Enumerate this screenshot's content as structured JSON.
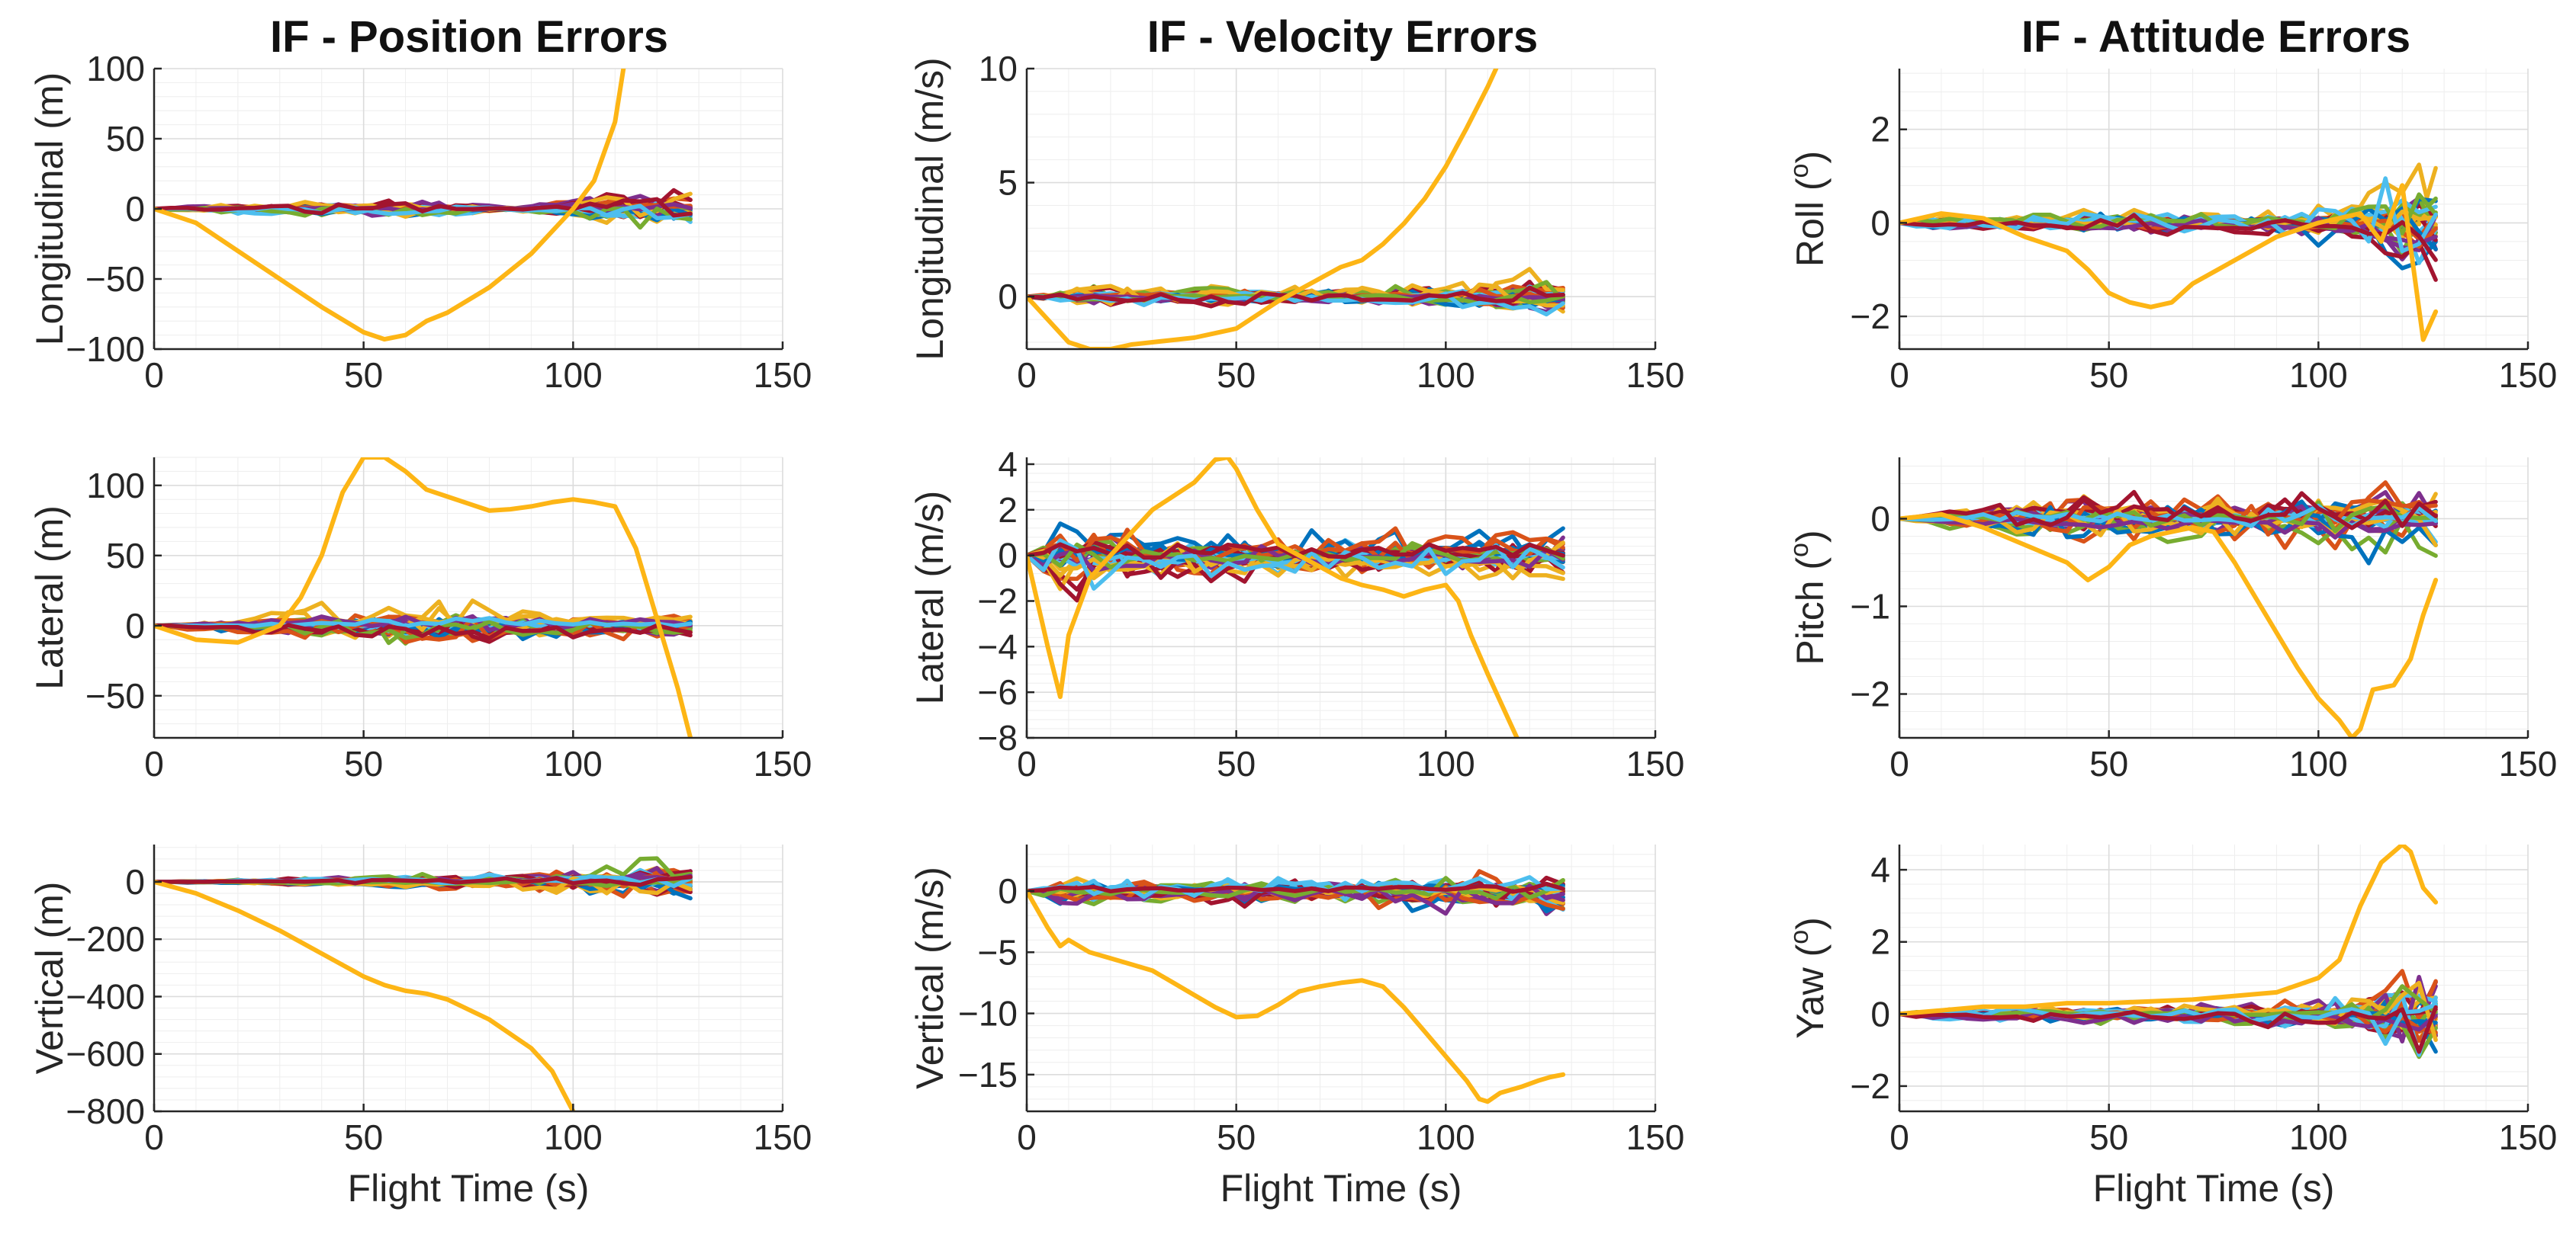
{
  "figure": {
    "column_titles": [
      "IF - Position Errors",
      "IF - Velocity Errors",
      "IF - Attitude Errors"
    ],
    "xlabel": "Flight Time (s)"
  },
  "chart_data": [
    {
      "type": "line",
      "id": "pos-long",
      "title": "IF - Position Errors",
      "xlabel": "",
      "ylabel": "Longitudinal (m)",
      "xlim": [
        0,
        150
      ],
      "ylim": [
        -100,
        100
      ],
      "xticks": [
        0,
        50,
        100,
        150
      ],
      "yticks": [
        -100,
        -50,
        0,
        50,
        100
      ],
      "xtick_labels": [
        "0",
        "50",
        "100",
        "150"
      ],
      "ytick_labels": [
        "−100",
        "−50",
        "0",
        "50",
        "100"
      ],
      "grid": true,
      "ensemble": {
        "description": "many Monte Carlo runs clustered around zero",
        "envelope": [
          0,
          3,
          5,
          7,
          9,
          10,
          11,
          12,
          10,
          6,
          2,
          8,
          14,
          18,
          20,
          18
        ],
        "t_end": 128
      },
      "outlier": {
        "x": [
          0,
          10,
          20,
          30,
          40,
          50,
          55,
          60,
          65,
          70,
          80,
          90,
          100,
          105,
          110,
          112
        ],
        "y": [
          0,
          -10,
          -30,
          -50,
          -70,
          -88,
          -93,
          -90,
          -80,
          -74,
          -56,
          -32,
          0,
          20,
          62,
          100
        ]
      }
    },
    {
      "type": "line",
      "id": "vel-long",
      "title": "IF - Velocity Errors",
      "xlabel": "",
      "ylabel": "Longitudinal (m/s)",
      "xlim": [
        0,
        150
      ],
      "ylim": [
        -2.3,
        10
      ],
      "xticks": [
        0,
        50,
        100,
        150
      ],
      "yticks": [
        0,
        5,
        10
      ],
      "xtick_labels": [
        "0",
        "50",
        "100",
        "150"
      ],
      "ytick_labels": [
        "0",
        "5",
        "10"
      ],
      "grid": true,
      "ensemble": {
        "description": "many Monte Carlo runs clustered around zero",
        "envelope": [
          0,
          0.6,
          0.8,
          0.8,
          0.8,
          0.8,
          0.7,
          0.7,
          0.7,
          0.7,
          0.8,
          0.9,
          1.1,
          1.3,
          1.5,
          1.6
        ],
        "t_end": 128
      },
      "outlier": {
        "x": [
          0,
          5,
          10,
          15,
          20,
          25,
          30,
          35,
          40,
          45,
          50,
          55,
          60,
          65,
          70,
          75,
          80,
          85,
          90,
          95,
          100,
          105,
          110,
          112
        ],
        "y": [
          0,
          -1,
          -2,
          -2.3,
          -2.3,
          -2.1,
          -2,
          -1.9,
          -1.8,
          -1.6,
          -1.4,
          -0.8,
          -0.2,
          0.3,
          0.8,
          1.3,
          1.6,
          2.3,
          3.2,
          4.3,
          5.7,
          7.4,
          9.2,
          10
        ]
      }
    },
    {
      "type": "line",
      "id": "att-roll",
      "title": "IF - Attitude Errors",
      "xlabel": "",
      "ylabel": "Roll (°)",
      "ylabel_base": "Roll (",
      "ylabel_sup": "o",
      "ylabel_tail": ")",
      "xlim": [
        0,
        150
      ],
      "ylim": [
        -2.7,
        3.3
      ],
      "xticks": [
        0,
        50,
        100,
        150
      ],
      "yticks": [
        -2,
        0,
        2
      ],
      "xtick_labels": [
        "0",
        "50",
        "100",
        "150"
      ],
      "ytick_labels": [
        "−2",
        "0",
        "2"
      ],
      "grid": true,
      "ensemble": {
        "description": "many Monte Carlo runs, spreading near the end",
        "envelope": [
          0,
          0.3,
          0.3,
          0.3,
          0.4,
          0.5,
          0.5,
          0.5,
          0.5,
          0.5,
          0.5,
          0.6,
          0.7,
          0.9,
          2.6,
          3.0
        ],
        "t_end": 128
      },
      "outlier": {
        "x": [
          0,
          10,
          20,
          30,
          40,
          45,
          50,
          55,
          60,
          65,
          70,
          80,
          90,
          100,
          110,
          115,
          120,
          125,
          128
        ],
        "y": [
          0,
          0.2,
          0.1,
          -0.3,
          -0.6,
          -1,
          -1.5,
          -1.7,
          -1.8,
          -1.7,
          -1.3,
          -0.8,
          -0.3,
          0,
          0.2,
          -0.4,
          0.8,
          -2.5,
          -1.9
        ]
      }
    },
    {
      "type": "line",
      "id": "pos-lat",
      "title": "",
      "xlabel": "",
      "ylabel": "Lateral (m)",
      "xlim": [
        0,
        150
      ],
      "ylim": [
        -80,
        120
      ],
      "xticks": [
        0,
        50,
        100,
        150
      ],
      "yticks": [
        -50,
        0,
        50,
        100
      ],
      "xtick_labels": [
        "0",
        "50",
        "100",
        "150"
      ],
      "ytick_labels": [
        "−50",
        "0",
        "50",
        "100"
      ],
      "grid": true,
      "ensemble": {
        "description": "many Monte Carlo runs clustered around zero",
        "envelope": [
          0,
          4,
          8,
          12,
          16,
          20,
          22,
          23,
          22,
          20,
          18,
          16,
          15,
          14,
          13,
          12
        ],
        "t_end": 128
      },
      "outlier": {
        "x": [
          0,
          10,
          20,
          30,
          35,
          40,
          45,
          50,
          55,
          60,
          65,
          70,
          75,
          80,
          85,
          90,
          95,
          100,
          105,
          110,
          115,
          120,
          125,
          128
        ],
        "y": [
          0,
          -10,
          -12,
          0,
          20,
          50,
          95,
          120,
          120,
          110,
          97,
          92,
          87,
          82,
          83,
          85,
          88,
          90,
          88,
          85,
          55,
          5,
          -45,
          -80
        ]
      }
    },
    {
      "type": "line",
      "id": "vel-lat",
      "title": "",
      "xlabel": "",
      "ylabel": "Lateral (m/s)",
      "xlim": [
        0,
        150
      ],
      "ylim": [
        -8,
        4.3
      ],
      "xticks": [
        0,
        50,
        100,
        150
      ],
      "yticks": [
        -8,
        -6,
        -4,
        -2,
        0,
        2,
        4
      ],
      "xtick_labels": [
        "0",
        "50",
        "100",
        "150"
      ],
      "ytick_labels": [
        "−8",
        "−6",
        "−4",
        "−2",
        "0",
        "2",
        "4"
      ],
      "grid": true,
      "ensemble": {
        "description": "many Monte Carlo runs, large transient near t=5 s",
        "envelope": [
          0,
          3,
          2.5,
          1.8,
          1.8,
          1.7,
          1.7,
          1.6,
          1.6,
          1.6,
          1.6,
          1.6,
          1.6,
          1.7,
          1.7,
          1.8
        ],
        "t_end": 128
      },
      "outlier": {
        "x": [
          0,
          5,
          8,
          10,
          15,
          20,
          25,
          30,
          35,
          40,
          45,
          48,
          50,
          55,
          60,
          65,
          70,
          75,
          80,
          85,
          90,
          95,
          100,
          103,
          106,
          110,
          115,
          117
        ],
        "y": [
          0,
          -4,
          -6.2,
          -3.5,
          -1,
          0,
          1,
          2,
          2.6,
          3.2,
          4.2,
          4.3,
          3.8,
          2,
          0.5,
          0,
          -0.5,
          -1,
          -1.3,
          -1.5,
          -1.8,
          -1.5,
          -1.3,
          -2,
          -3.5,
          -5.2,
          -7.2,
          -8
        ]
      }
    },
    {
      "type": "line",
      "id": "att-pitch",
      "title": "",
      "xlabel": "",
      "ylabel": "Pitch (°)",
      "ylabel_base": "Pitch (",
      "ylabel_sup": "o",
      "ylabel_tail": ")",
      "xlim": [
        0,
        150
      ],
      "ylim": [
        -2.5,
        0.7
      ],
      "xticks": [
        0,
        50,
        100,
        150
      ],
      "yticks": [
        -2,
        -1,
        0
      ],
      "xtick_labels": [
        "0",
        "50",
        "100",
        "150"
      ],
      "ytick_labels": [
        "−2",
        "−1",
        "0"
      ],
      "grid": true,
      "ensemble": {
        "description": "many Monte Carlo runs clustered around zero",
        "envelope": [
          0,
          0.15,
          0.25,
          0.35,
          0.45,
          0.5,
          0.5,
          0.5,
          0.5,
          0.5,
          0.5,
          0.55,
          0.6,
          0.6,
          0.65,
          0.7
        ],
        "t_end": 128
      },
      "outlier": {
        "x": [
          0,
          10,
          20,
          30,
          40,
          45,
          50,
          55,
          60,
          70,
          75,
          80,
          85,
          90,
          95,
          100,
          105,
          108,
          110,
          113,
          118,
          122,
          125,
          128
        ],
        "y": [
          0,
          0.05,
          -0.1,
          -0.3,
          -0.5,
          -0.7,
          -0.55,
          -0.3,
          -0.2,
          -0.1,
          -0.15,
          -0.5,
          -0.9,
          -1.3,
          -1.7,
          -2.05,
          -2.3,
          -2.5,
          -2.4,
          -1.95,
          -1.9,
          -1.6,
          -1.1,
          -0.7
        ]
      }
    },
    {
      "type": "line",
      "id": "pos-vert",
      "title": "",
      "xlabel": "Flight Time (s)",
      "ylabel": "Vertical (m)",
      "xlim": [
        0,
        150
      ],
      "ylim": [
        -800,
        130
      ],
      "xticks": [
        0,
        50,
        100,
        150
      ],
      "yticks": [
        -800,
        -600,
        -400,
        -200,
        0
      ],
      "xtick_labels": [
        "0",
        "50",
        "100",
        "150"
      ],
      "ytick_labels": [
        "−800",
        "−600",
        "−400",
        "−200",
        "0"
      ],
      "grid": true,
      "ensemble": {
        "description": "many Monte Carlo runs, spreading over time",
        "envelope": [
          0,
          5,
          10,
          18,
          25,
          30,
          35,
          40,
          45,
          55,
          65,
          75,
          90,
          105,
          120,
          125
        ],
        "t_end": 128
      },
      "outlier": {
        "x": [
          0,
          10,
          20,
          30,
          40,
          50,
          55,
          60,
          65,
          70,
          80,
          90,
          95,
          100
        ],
        "y": [
          0,
          -40,
          -100,
          -170,
          -250,
          -330,
          -360,
          -380,
          -390,
          -410,
          -480,
          -580,
          -660,
          -800
        ]
      }
    },
    {
      "type": "line",
      "id": "vel-vert",
      "title": "",
      "xlabel": "Flight Time (s)",
      "ylabel": "Vertical (m/s)",
      "xlim": [
        0,
        150
      ],
      "ylim": [
        -18,
        3.8
      ],
      "xticks": [
        0,
        50,
        100,
        150
      ],
      "yticks": [
        -15,
        -10,
        -5,
        0
      ],
      "xtick_labels": [
        "0",
        "50",
        "100",
        "150"
      ],
      "ytick_labels": [
        "−15",
        "−10",
        "−5",
        "0"
      ],
      "grid": true,
      "ensemble": {
        "description": "many Monte Carlo runs clustered around zero",
        "envelope": [
          0,
          2.5,
          2,
          2,
          2,
          2,
          2,
          2,
          2,
          2.2,
          2.4,
          2.6,
          2.8,
          3,
          3.2,
          3.4
        ],
        "t_end": 128
      },
      "outlier": {
        "x": [
          0,
          5,
          8,
          10,
          15,
          20,
          25,
          30,
          35,
          40,
          45,
          50,
          55,
          60,
          65,
          70,
          75,
          80,
          85,
          90,
          95,
          100,
          105,
          108,
          110,
          113,
          118,
          122,
          125,
          128
        ],
        "y": [
          0,
          -3,
          -4.5,
          -4,
          -5,
          -5.5,
          -6,
          -6.5,
          -7.5,
          -8.5,
          -9.5,
          -10.3,
          -10.2,
          -9.3,
          -8.2,
          -7.8,
          -7.5,
          -7.3,
          -7.8,
          -9.5,
          -11.5,
          -13.5,
          -15.5,
          -17,
          -17.2,
          -16.5,
          -16,
          -15.5,
          -15.2,
          -15
        ]
      }
    },
    {
      "type": "line",
      "id": "att-yaw",
      "title": "",
      "xlabel": "Flight Time (s)",
      "ylabel": "Yaw (°)",
      "ylabel_base": "Yaw (",
      "ylabel_sup": "o",
      "ylabel_tail": ")",
      "xlim": [
        0,
        150
      ],
      "ylim": [
        -2.7,
        4.7
      ],
      "xticks": [
        0,
        50,
        100,
        150
      ],
      "yticks": [
        -2,
        0,
        2,
        4
      ],
      "xtick_labels": [
        "0",
        "50",
        "100",
        "150"
      ],
      "ytick_labels": [
        "−2",
        "0",
        "2",
        "4"
      ],
      "grid": true,
      "ensemble": {
        "description": "many Monte Carlo runs, spreading near the end",
        "envelope": [
          0,
          0.3,
          0.3,
          0.35,
          0.35,
          0.4,
          0.4,
          0.45,
          0.5,
          0.55,
          0.6,
          0.65,
          0.8,
          1.2,
          2.4,
          2.7
        ],
        "t_end": 128
      },
      "outlier": {
        "x": [
          0,
          10,
          20,
          30,
          40,
          50,
          60,
          70,
          80,
          90,
          100,
          105,
          110,
          115,
          120,
          122,
          125,
          128
        ],
        "y": [
          0,
          0.1,
          0.2,
          0.2,
          0.3,
          0.3,
          0.35,
          0.4,
          0.5,
          0.6,
          1,
          1.5,
          3,
          4.2,
          4.7,
          4.5,
          3.5,
          3.1
        ]
      }
    }
  ],
  "series_palette": [
    "#0072BD",
    "#D95319",
    "#EDB120",
    "#7E2F8E",
    "#77AC30",
    "#4DBEEE",
    "#A2142F"
  ],
  "outlier_color": "#FDB515",
  "styles": {
    "grid_major": "#dcdcdc",
    "grid_minor": "#eeeeee",
    "axis": "#262626"
  }
}
